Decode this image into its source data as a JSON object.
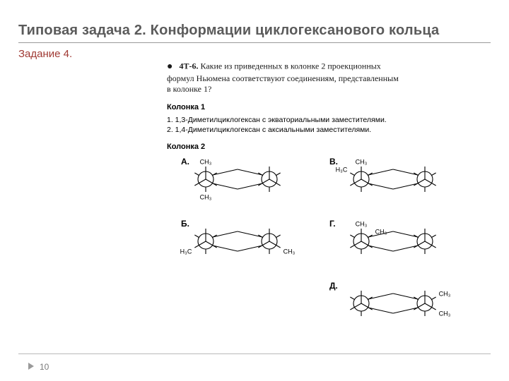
{
  "title": "Типовая задача 2. Конформации циклогексанового кольца",
  "task_label": "Задание 4.",
  "question": {
    "code": "4Т-6.",
    "text_l1": "Какие из приведенных в колонке 2 проекционных",
    "text_l2": "формул Ньюмена соответствуют соединениям, представленным",
    "text_l3": "в  колонке  1?"
  },
  "column1": {
    "header": "Колонка 1",
    "items": [
      "1. 1,3-Диметилциклогексан с экваториальными заместителями.",
      "2. 1,4-Диметилциклогексан с аксиальными заместителями."
    ]
  },
  "column2": {
    "header": "Колонка 2",
    "options": [
      "А.",
      "Б.",
      "В.",
      "Г.",
      "Д."
    ]
  },
  "ch3": "CH₃",
  "h3c": "H₃C",
  "page_number": "10",
  "style": {
    "stroke": "#000000",
    "stroke_width": 1.1,
    "ring_r": 11
  }
}
